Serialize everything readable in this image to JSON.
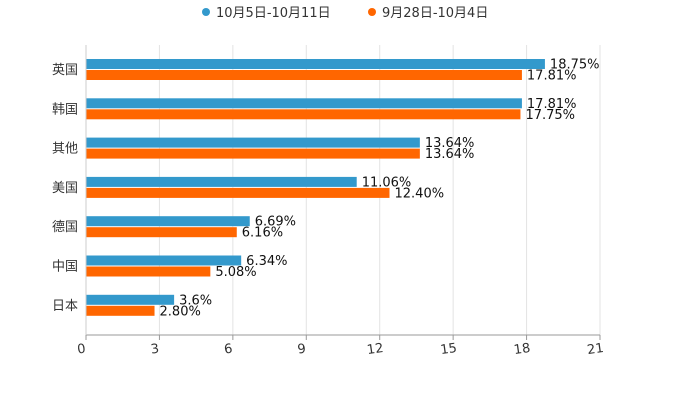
{
  "chart_data": {
    "type": "bar",
    "orientation": "horizontal",
    "categories": [
      "英国",
      "韩国",
      "其他",
      "美国",
      "德国",
      "中国",
      "日本"
    ],
    "series": [
      {
        "name": "10月5日-10月11日",
        "color": "#3399cc",
        "values": [
          18.75,
          17.81,
          13.64,
          11.06,
          6.69,
          6.34,
          3.6
        ],
        "labels": [
          "18.75%",
          "17.81%",
          "13.64%",
          "11.06%",
          "6.69%",
          "6.34%",
          "3.6%"
        ]
      },
      {
        "name": "9月28日-10月4日",
        "color": "#ff6600",
        "values": [
          17.81,
          17.75,
          13.64,
          12.4,
          6.16,
          5.08,
          2.8
        ],
        "labels": [
          "17.81%",
          "17.75%",
          "13.64%",
          "12.40%",
          "6.16%",
          "5.08%",
          "2.80%"
        ]
      }
    ],
    "xlim": [
      0,
      21
    ],
    "xticks": [
      0,
      3,
      6,
      9,
      12,
      15,
      18,
      21
    ],
    "xtick_labels": [
      "0",
      "3",
      "6",
      "9",
      "12",
      "15",
      "18",
      "21"
    ],
    "grid": true,
    "legend_position": "top-center",
    "title": "",
    "xlabel": "",
    "ylabel": ""
  }
}
